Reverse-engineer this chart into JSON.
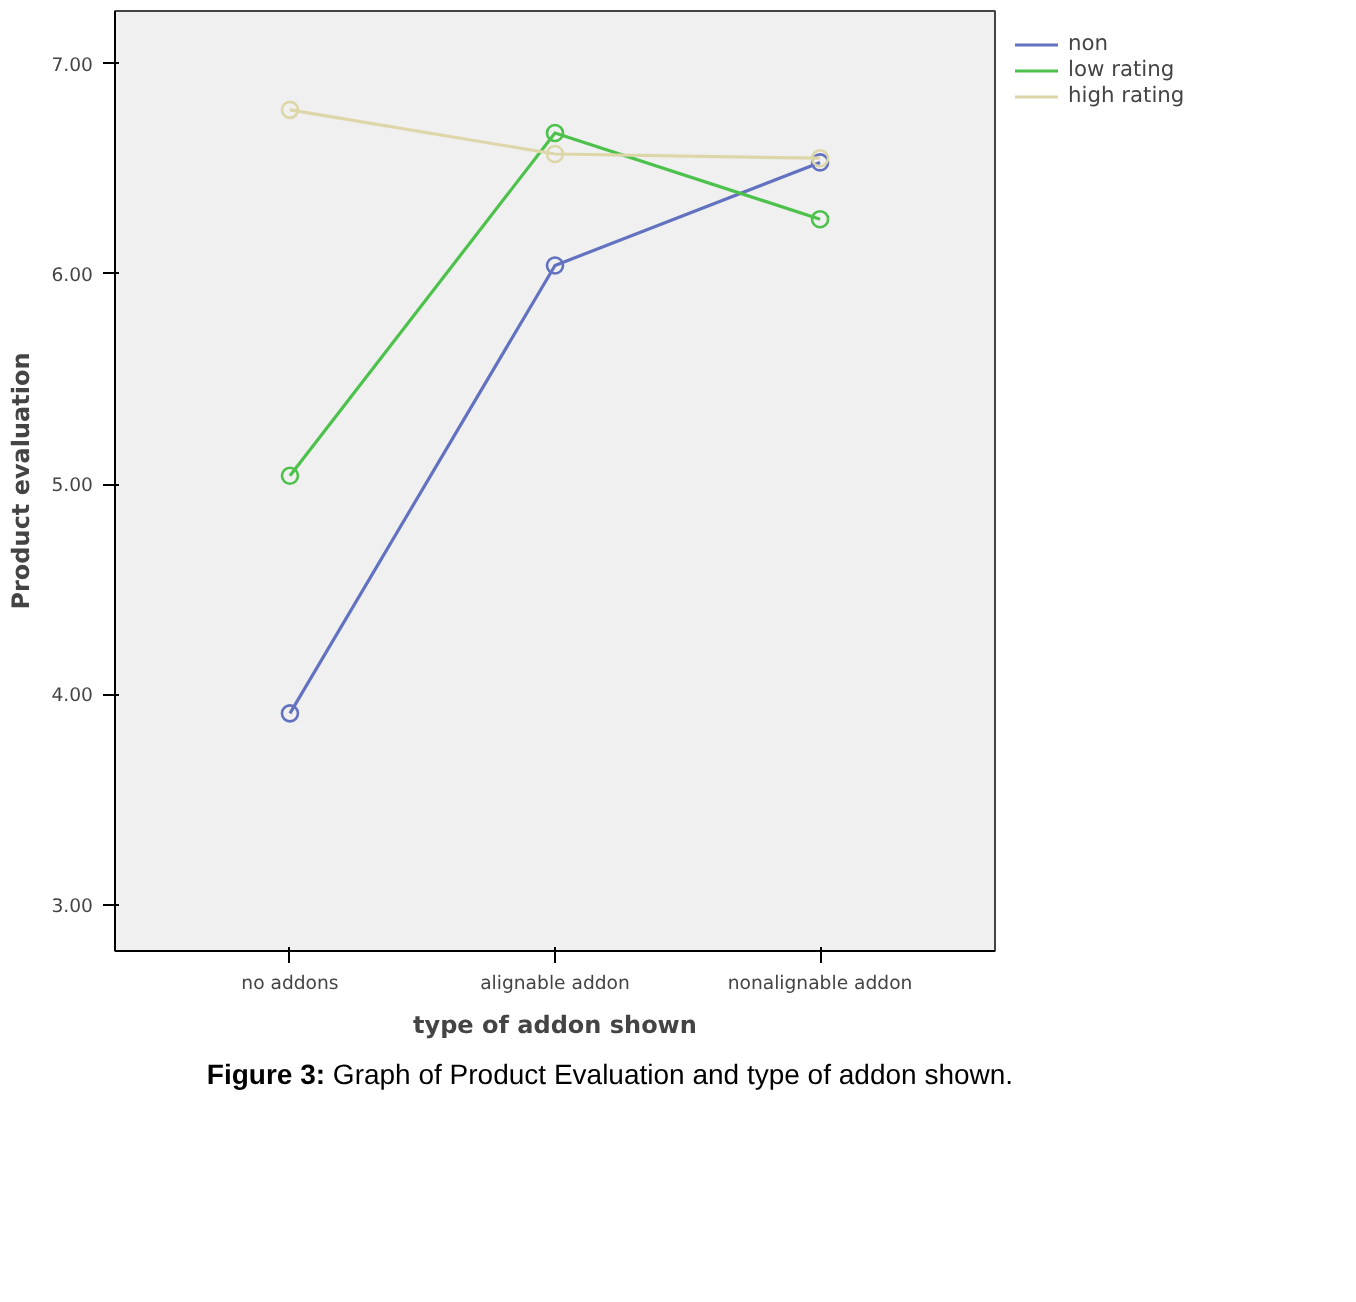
{
  "chart_data": {
    "type": "line",
    "xlabel": "type of addon shown",
    "ylabel": "Product evaluation",
    "categories": [
      "no addons",
      "alignable addon",
      "nonalignable addon"
    ],
    "series": [
      {
        "name": "non",
        "color": "#6272c0",
        "values": [
          3.91,
          6.04,
          6.53
        ]
      },
      {
        "name": "low rating",
        "color": "#4cc24c",
        "values": [
          5.04,
          6.67,
          6.26
        ]
      },
      {
        "name": "high rating",
        "color": "#dcd6a8",
        "values": [
          6.78,
          6.57,
          6.55
        ]
      }
    ],
    "ylim": [
      2.78,
      7.25
    ],
    "yticks": [
      {
        "value": 3,
        "label": "3.00"
      },
      {
        "value": 4,
        "label": "4.00"
      },
      {
        "value": 5,
        "label": "5.00"
      },
      {
        "value": 6,
        "label": "6.00"
      },
      {
        "value": 7,
        "label": "7.00"
      }
    ],
    "marker": "circle",
    "grid": false,
    "legend": "top right",
    "annotations": [
      "Figure 3: Graph of Product Evaluation and type of addon shown."
    ]
  }
}
